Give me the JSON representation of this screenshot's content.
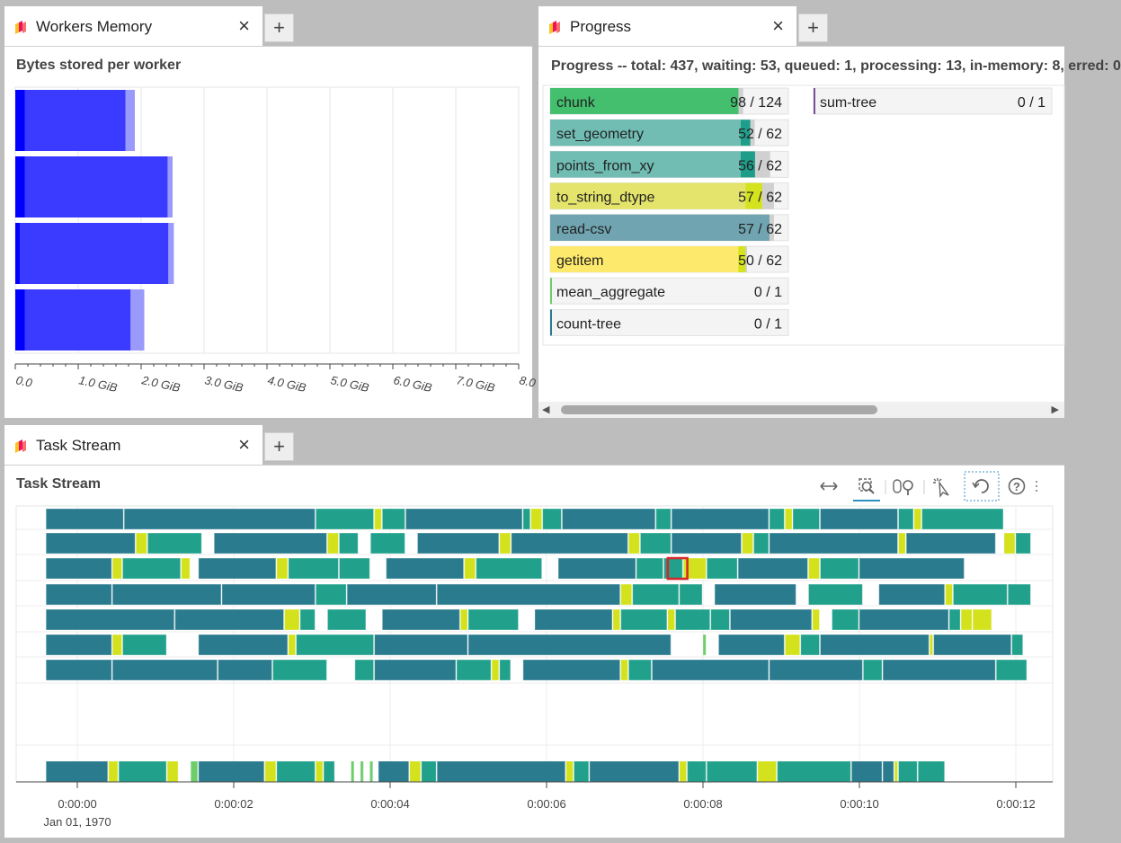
{
  "colors": {
    "bar_blue": "#3b3bff",
    "bar_blue_dark": "#0000ff",
    "bar_blue_light": "#9a9afa",
    "task_dark": "#2a7b8e",
    "task_teal": "#21a18b",
    "task_yellow": "#d3e21c",
    "task_green": "#6ccd6a",
    "prog_green": "#43bf6e",
    "prog_teal": "#71bdb4",
    "prog_teal_dark": "#1e9e8a",
    "prog_yellow": "#e4e46c",
    "prog_yellow_bright": "#d4e31d",
    "prog_dark": "#6fa4b0",
    "prog_getitem": "#fde96b",
    "prog_gray": "#d0d0d0",
    "selected_outline": "#d62728"
  },
  "memory_panel": {
    "tab_title": "Workers Memory",
    "close_icon": "×",
    "add_tab": "+",
    "chart_title": "Bytes stored per worker",
    "chart_data": {
      "type": "bar",
      "orientation": "horizontal",
      "title": "Bytes stored per worker",
      "xlim": [
        0,
        8
      ],
      "xticks": [
        "0.0",
        "1.0 GiB",
        "2.0 GiB",
        "3.0 GiB",
        "4.0 GiB",
        "5.0 GiB",
        "6.0 GiB",
        "7.0 GiB",
        "8.0 GiB"
      ],
      "grid": true,
      "workers": [
        {
          "managed": 1.75,
          "total": 1.9,
          "dark": 0.15
        },
        {
          "managed": 2.42,
          "total": 2.5,
          "dark": 0.15
        },
        {
          "managed": 2.43,
          "total": 2.52,
          "dark": 0.07
        },
        {
          "managed": 1.83,
          "total": 2.05,
          "dark": 0.15
        }
      ]
    }
  },
  "progress_panel": {
    "tab_title": "Progress",
    "close_icon": "×",
    "add_tab": "+",
    "header": "Progress -- total: 437, waiting: 53, queued: 1, processing: 13, in-memory: 8, erred: 0",
    "scroll_left_icon": "◀",
    "scroll_right_icon": "▶",
    "items": [
      {
        "name": "chunk",
        "count": "98 / 124",
        "done": 98,
        "total": 124,
        "mem": 0.79,
        "proc": 0.0,
        "color": "#43bf6e",
        "procColor": "#43bf6e"
      },
      {
        "name": "set_geometry",
        "count": "52 / 62",
        "done": 52,
        "total": 62,
        "mem": 0.8,
        "proc": 0.04,
        "color": "#71bdb4",
        "procColor": "#1e9e8a"
      },
      {
        "name": "points_from_xy",
        "count": "56 / 62",
        "done": 56,
        "total": 62,
        "mem": 0.8,
        "proc": 0.06,
        "color": "#71bdb4",
        "procColor": "#1e9e8a"
      },
      {
        "name": "to_string_dtype",
        "count": "57 / 62",
        "done": 57,
        "total": 62,
        "mem": 0.82,
        "proc": 0.07,
        "color": "#e4e46c",
        "procColor": "#d4e31d"
      },
      {
        "name": "read-csv",
        "count": "57 / 62",
        "done": 57,
        "total": 62,
        "mem": 0.92,
        "proc": 0.0,
        "color": "#6fa4b0",
        "procColor": "#6fa4b0"
      },
      {
        "name": "getitem",
        "count": "50 / 62",
        "done": 50,
        "total": 62,
        "mem": 0.79,
        "proc": 0.03,
        "color": "#fde96b",
        "procColor": "#d4e31d"
      },
      {
        "name": "mean_aggregate",
        "count": "0 / 1",
        "done": 0,
        "total": 1,
        "mem": 0.0,
        "proc": 0.0,
        "color": "#6ccd6a",
        "procColor": "#6ccd6a"
      },
      {
        "name": "count-tree",
        "count": "0 / 1",
        "done": 0,
        "total": 1,
        "mem": 0.0,
        "proc": 0.0,
        "color": "#2a7b8e",
        "procColor": "#2a7b8e"
      }
    ],
    "items_col2": [
      {
        "name": "sum-tree",
        "count": "0 / 1",
        "done": 0,
        "total": 1,
        "mem": 0.0,
        "proc": 0.0,
        "color": "#7a4f9a",
        "procColor": "#7a4f9a"
      }
    ]
  },
  "taskstream_panel": {
    "tab_title": "Task Stream",
    "close_icon": "×",
    "add_tab": "+",
    "chart_title": "Task Stream",
    "toolbar": [
      "pan-icon",
      "box-zoom-icon",
      "wheel-zoom-icon",
      "tap-icon",
      "reset-icon",
      "help-icon",
      "more-icon"
    ],
    "chart_data": {
      "type": "gantt",
      "title": "Task Stream",
      "xlim": [
        -0.4,
        12.5
      ],
      "xticks": [
        "0:00:00",
        "0:00:02",
        "0:00:04",
        "0:00:06",
        "0:00:08",
        "0:00:10",
        "0:00:12"
      ],
      "xtick_values": [
        0,
        2,
        4,
        6,
        8,
        10,
        12
      ],
      "x_sublabel": "Jan 01, 1970",
      "rows": [
        [
          [
            -0.4,
            0.6,
            "d"
          ],
          [
            0.6,
            3.05,
            "d"
          ],
          [
            3.05,
            3.8,
            "t"
          ],
          [
            3.8,
            3.9,
            "y"
          ],
          [
            3.9,
            4.2,
            "t"
          ],
          [
            4.2,
            5.7,
            "d"
          ],
          [
            5.7,
            5.8,
            "t"
          ],
          [
            5.8,
            5.95,
            "y"
          ],
          [
            5.95,
            6.2,
            "t"
          ],
          [
            6.2,
            7.4,
            "d"
          ],
          [
            7.4,
            7.6,
            "t"
          ],
          [
            7.6,
            8.85,
            "d"
          ],
          [
            8.85,
            9.05,
            "t"
          ],
          [
            9.05,
            9.15,
            "y"
          ],
          [
            9.15,
            9.5,
            "t"
          ],
          [
            9.5,
            10.5,
            "d"
          ],
          [
            10.5,
            10.7,
            "t"
          ],
          [
            10.7,
            10.8,
            "y"
          ],
          [
            10.8,
            11.85,
            "t"
          ]
        ],
        [
          [
            -0.4,
            0.75,
            "d"
          ],
          [
            0.75,
            0.9,
            "y"
          ],
          [
            0.9,
            1.6,
            "t"
          ],
          [
            1.75,
            3.2,
            "d"
          ],
          [
            3.2,
            3.35,
            "y"
          ],
          [
            3.35,
            3.6,
            "t"
          ],
          [
            3.75,
            4.2,
            "t"
          ],
          [
            4.35,
            5.4,
            "d"
          ],
          [
            5.4,
            5.55,
            "y"
          ],
          [
            5.55,
            7.05,
            "d"
          ],
          [
            7.05,
            7.2,
            "y"
          ],
          [
            7.2,
            7.6,
            "t"
          ],
          [
            7.6,
            8.5,
            "d"
          ],
          [
            8.5,
            8.65,
            "y"
          ],
          [
            8.65,
            8.85,
            "t"
          ],
          [
            8.85,
            10.5,
            "d"
          ],
          [
            10.5,
            10.6,
            "y"
          ],
          [
            10.6,
            11.75,
            "d"
          ],
          [
            11.85,
            12.0,
            "y"
          ],
          [
            12.0,
            12.2,
            "t"
          ]
        ],
        [
          [
            -0.4,
            0.45,
            "d"
          ],
          [
            0.45,
            0.58,
            "y"
          ],
          [
            0.58,
            1.33,
            "t"
          ],
          [
            1.33,
            1.45,
            "y"
          ],
          [
            1.55,
            2.55,
            "d"
          ],
          [
            2.55,
            2.7,
            "y"
          ],
          [
            2.7,
            3.35,
            "t"
          ],
          [
            3.35,
            3.75,
            "t"
          ],
          [
            3.95,
            4.95,
            "d"
          ],
          [
            4.95,
            5.1,
            "y"
          ],
          [
            5.1,
            5.95,
            "t"
          ],
          [
            6.15,
            7.15,
            "d"
          ],
          [
            7.15,
            7.5,
            "t"
          ],
          [
            7.5,
            7.75,
            "t"
          ],
          [
            7.75,
            8.05,
            "y"
          ],
          [
            8.05,
            8.45,
            "t"
          ],
          [
            8.45,
            9.35,
            "d"
          ],
          [
            9.35,
            9.5,
            "y"
          ],
          [
            9.5,
            10.0,
            "t"
          ],
          [
            10.0,
            11.35,
            "d"
          ]
        ],
        [
          [
            -0.4,
            0.45,
            "d"
          ],
          [
            0.45,
            1.85,
            "d"
          ],
          [
            1.85,
            3.05,
            "d"
          ],
          [
            3.05,
            3.45,
            "t"
          ],
          [
            3.45,
            4.6,
            "d"
          ],
          [
            4.6,
            6.95,
            "d"
          ],
          [
            6.95,
            7.1,
            "y"
          ],
          [
            7.1,
            7.7,
            "t"
          ],
          [
            7.7,
            8.0,
            "t"
          ],
          [
            8.15,
            9.2,
            "d"
          ],
          [
            9.35,
            10.05,
            "t"
          ],
          [
            10.25,
            11.1,
            "d"
          ],
          [
            11.1,
            11.2,
            "y"
          ],
          [
            11.2,
            11.9,
            "t"
          ],
          [
            11.9,
            12.2,
            "t"
          ]
        ],
        [
          [
            -0.4,
            1.25,
            "d"
          ],
          [
            1.25,
            2.65,
            "d"
          ],
          [
            2.65,
            2.85,
            "y"
          ],
          [
            2.85,
            3.05,
            "t"
          ],
          [
            3.2,
            3.7,
            "t"
          ],
          [
            3.9,
            4.9,
            "d"
          ],
          [
            4.9,
            5.0,
            "y"
          ],
          [
            5.0,
            5.65,
            "t"
          ],
          [
            5.85,
            6.85,
            "d"
          ],
          [
            6.85,
            6.95,
            "y"
          ],
          [
            6.95,
            7.55,
            "t"
          ],
          [
            7.55,
            7.65,
            "y"
          ],
          [
            7.65,
            8.1,
            "t"
          ],
          [
            8.1,
            8.35,
            "t"
          ],
          [
            8.35,
            9.4,
            "d"
          ],
          [
            9.4,
            9.5,
            "y"
          ],
          [
            9.65,
            10.0,
            "t"
          ],
          [
            10.0,
            11.15,
            "d"
          ],
          [
            11.15,
            11.3,
            "t"
          ],
          [
            11.3,
            11.45,
            "y"
          ],
          [
            11.45,
            11.7,
            "y"
          ]
        ],
        [
          [
            -0.4,
            0.45,
            "d"
          ],
          [
            0.45,
            0.58,
            "y"
          ],
          [
            0.58,
            1.15,
            "t"
          ],
          [
            1.55,
            2.7,
            "d"
          ],
          [
            2.7,
            2.8,
            "y"
          ],
          [
            2.8,
            3.8,
            "t"
          ],
          [
            3.8,
            5.0,
            "d"
          ],
          [
            5.0,
            7.6,
            "d"
          ],
          [
            8.0,
            8.05,
            "g"
          ],
          [
            8.2,
            9.05,
            "d"
          ],
          [
            9.05,
            9.25,
            "y"
          ],
          [
            9.25,
            9.5,
            "t"
          ],
          [
            9.5,
            10.9,
            "d"
          ],
          [
            10.9,
            10.95,
            "y"
          ],
          [
            10.95,
            11.95,
            "d"
          ],
          [
            11.95,
            12.1,
            "t"
          ]
        ],
        [
          [
            -0.4,
            0.45,
            "d"
          ],
          [
            0.45,
            1.8,
            "d"
          ],
          [
            1.8,
            2.5,
            "d"
          ],
          [
            2.5,
            3.2,
            "t"
          ],
          [
            3.55,
            3.8,
            "t"
          ],
          [
            3.8,
            4.85,
            "d"
          ],
          [
            4.85,
            5.3,
            "t"
          ],
          [
            5.3,
            5.4,
            "y"
          ],
          [
            5.4,
            5.55,
            "t"
          ],
          [
            5.7,
            6.95,
            "d"
          ],
          [
            6.95,
            7.05,
            "y"
          ],
          [
            7.05,
            7.35,
            "t"
          ],
          [
            7.35,
            8.85,
            "d"
          ],
          [
            8.85,
            10.05,
            "d"
          ],
          [
            10.05,
            10.3,
            "t"
          ],
          [
            10.3,
            11.75,
            "d"
          ],
          [
            11.75,
            12.15,
            "t"
          ]
        ],
        [],
        [
          [
            -0.4,
            0.4,
            "d"
          ],
          [
            0.4,
            0.53,
            "y"
          ],
          [
            0.53,
            1.15,
            "t"
          ],
          [
            1.15,
            1.3,
            "y"
          ],
          [
            1.45,
            1.55,
            "g"
          ],
          [
            1.55,
            2.4,
            "d"
          ],
          [
            2.4,
            2.55,
            "y"
          ],
          [
            2.55,
            3.05,
            "t"
          ],
          [
            3.05,
            3.15,
            "y"
          ],
          [
            3.15,
            3.3,
            "t"
          ],
          [
            3.5,
            3.55,
            "g"
          ],
          [
            3.62,
            3.67,
            "g"
          ],
          [
            3.74,
            3.79,
            "g"
          ],
          [
            3.85,
            4.25,
            "d"
          ],
          [
            4.25,
            4.4,
            "y"
          ],
          [
            4.4,
            4.6,
            "t"
          ],
          [
            4.6,
            6.25,
            "d"
          ],
          [
            6.25,
            6.35,
            "y"
          ],
          [
            6.35,
            6.55,
            "t"
          ],
          [
            6.55,
            7.7,
            "d"
          ],
          [
            7.7,
            7.8,
            "y"
          ],
          [
            7.8,
            8.05,
            "t"
          ],
          [
            8.05,
            8.7,
            "t"
          ],
          [
            8.7,
            8.95,
            "y"
          ],
          [
            8.95,
            9.9,
            "t"
          ],
          [
            9.9,
            10.3,
            "d"
          ],
          [
            10.3,
            10.45,
            "d"
          ],
          [
            10.45,
            10.5,
            "y"
          ],
          [
            10.5,
            10.75,
            "t"
          ],
          [
            10.75,
            11.1,
            "t"
          ]
        ]
      ],
      "selected": {
        "row": 2,
        "x0": 7.55,
        "x1": 7.8
      }
    }
  }
}
